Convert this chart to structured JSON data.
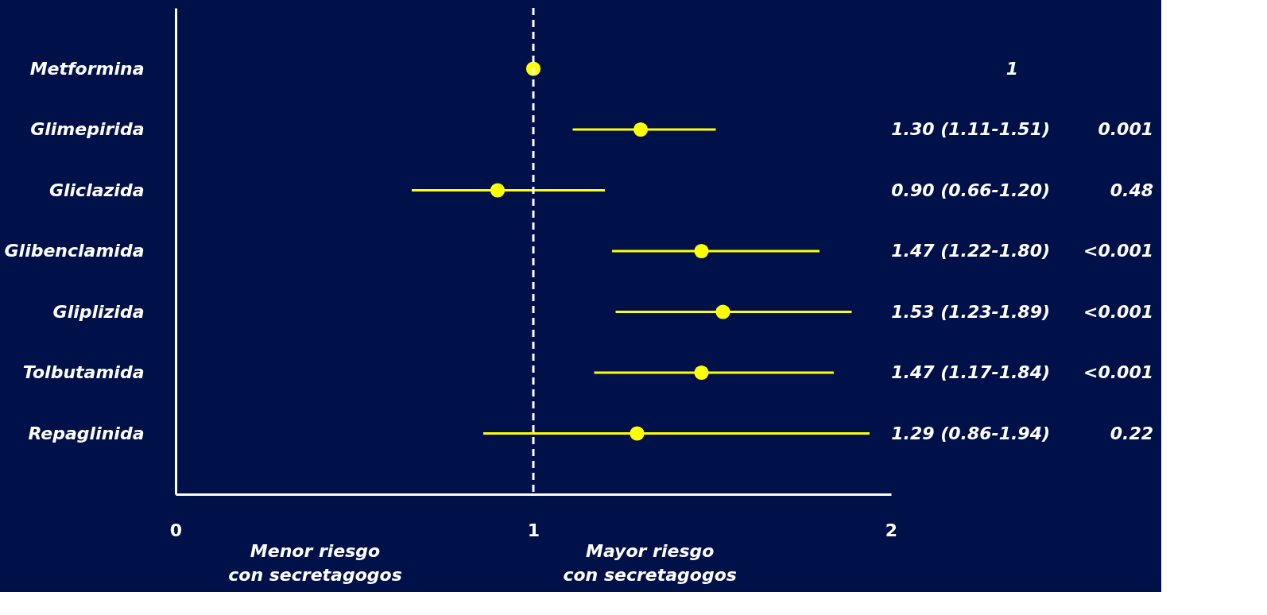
{
  "chart_data": {
    "type": "scatter",
    "orientation": "horizontal",
    "categories": [
      "Metformina",
      "Glimepirida",
      "Gliclazida",
      "Glibenclamida",
      "Gliplizida",
      "Tolbutamida",
      "Repaglinida"
    ],
    "values": [
      1,
      1.3,
      0.9,
      1.47,
      1.53,
      1.47,
      1.29
    ],
    "errors": [
      null,
      [
        1.11,
        1.51
      ],
      [
        0.66,
        1.2
      ],
      [
        1.22,
        1.8
      ],
      [
        1.23,
        1.89
      ],
      [
        1.17,
        1.84
      ],
      [
        0.86,
        1.94
      ]
    ],
    "color": "#ffff00",
    "marker": "circle",
    "xlim": [
      0,
      2
    ],
    "xticks": [
      0,
      1,
      2
    ],
    "grid": false,
    "ref_lines": [
      {
        "axis": "x",
        "value": 1,
        "color": "#ffffff",
        "line_style": "dashed"
      }
    ],
    "annotations": [
      "1",
      "1.30 (1.11-1.51)",
      "0.001",
      "0.90 (0.66-1.20)",
      "0.48",
      "1.47 (1.22-1.80)",
      "<0.001",
      "1.53 (1.23-1.89)",
      "<0.001",
      "1.47 (1.17-1.84)",
      "<0.001",
      "1.29 (0.86-1.94)",
      "0.22",
      "Menor riesgo\ncon secretagogos",
      "Mayor riesgo\ncon secretagogos"
    ]
  }
}
